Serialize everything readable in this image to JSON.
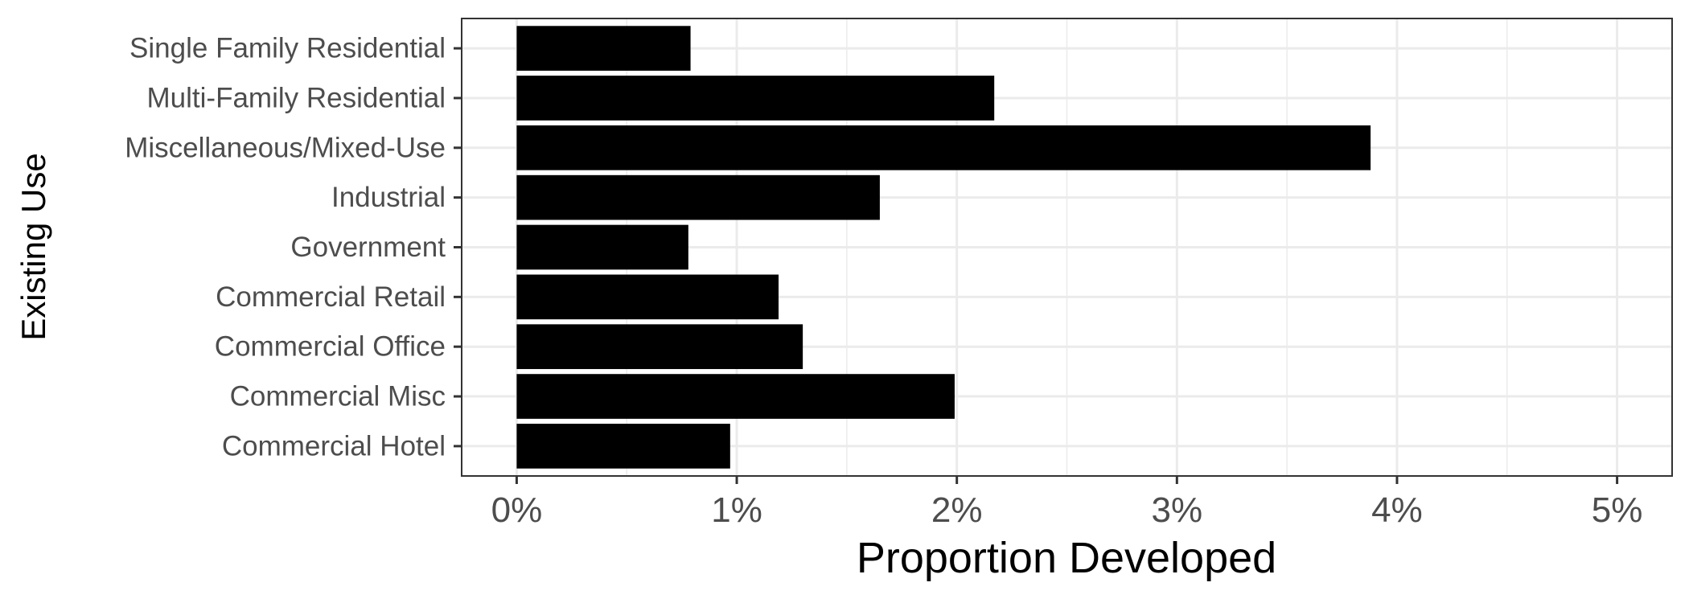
{
  "chart_data": {
    "type": "bar",
    "orientation": "horizontal",
    "categories": [
      "Single Family Residential",
      "Multi-Family Residential",
      "Miscellaneous/Mixed-Use",
      "Industrial",
      "Government",
      "Commercial Retail",
      "Commercial Office",
      "Commercial Misc",
      "Commercial Hotel"
    ],
    "values": [
      0.79,
      2.17,
      3.88,
      1.65,
      0.78,
      1.19,
      1.3,
      1.99,
      0.97
    ],
    "xlabel": "Proportion Developed",
    "ylabel": "Existing Use",
    "xlim": [
      -0.25,
      5.25
    ],
    "xticks": [
      0,
      1,
      2,
      3,
      4,
      5
    ],
    "xtick_labels": [
      "0%",
      "1%",
      "2%",
      "3%",
      "4%",
      "5%"
    ],
    "grid": true,
    "bar_color": "#000000",
    "grid_color": "#ebebeb",
    "panel_border_color": "#333333",
    "tick_label_color": "#4d4d4d"
  }
}
